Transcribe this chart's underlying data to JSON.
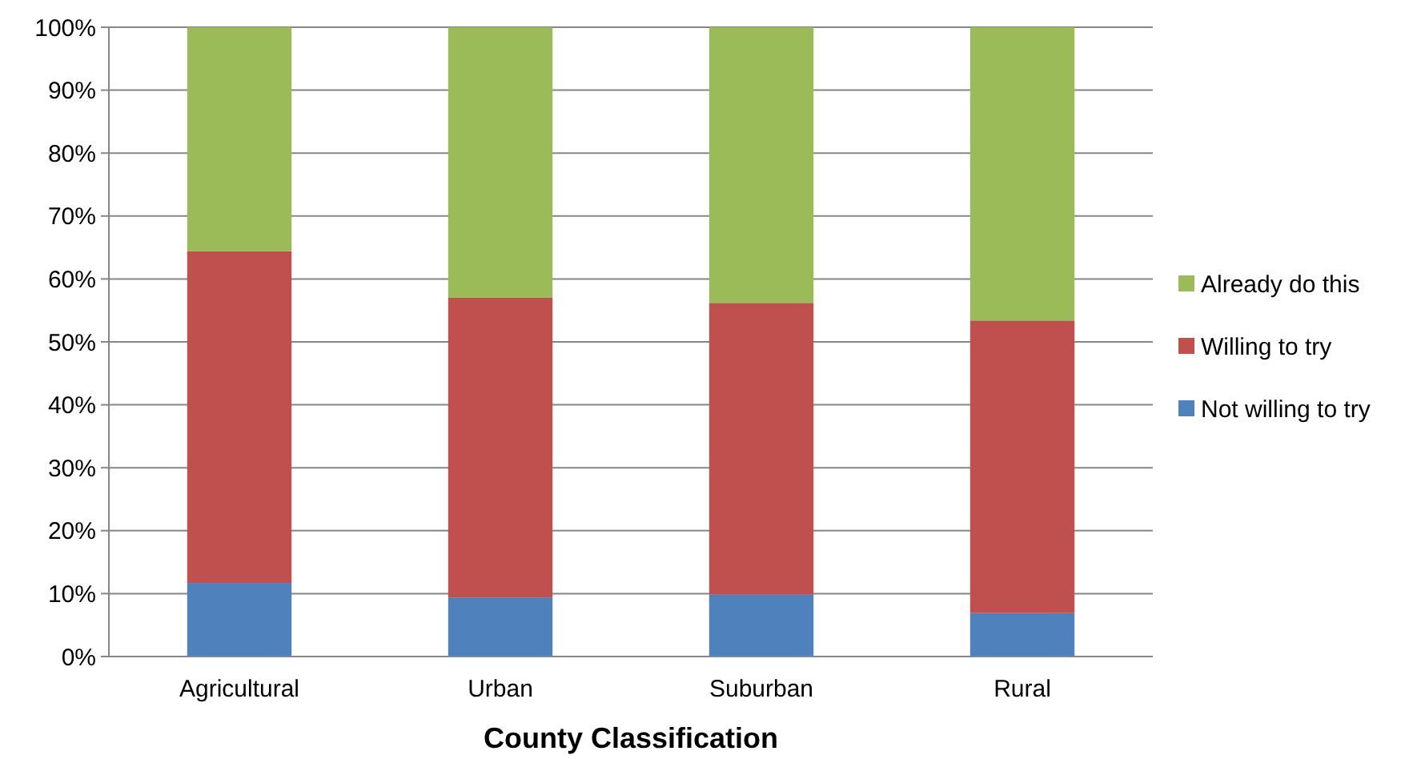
{
  "chart_data": {
    "type": "bar",
    "stacked": true,
    "xlabel": "County Classification",
    "categories": [
      "Agricultural",
      "Urban",
      "Suburban",
      "Rural"
    ],
    "series": [
      {
        "name": "Not willing to try",
        "color": "#4f81bd",
        "values": [
          11.7,
          9.4,
          9.9,
          6.9
        ]
      },
      {
        "name": "Willing to try",
        "color": "#c0504d",
        "values": [
          52.7,
          47.6,
          46.3,
          46.5
        ]
      },
      {
        "name": "Already do this",
        "color": "#9bbb59",
        "values": [
          35.6,
          43,
          43.8,
          46.6
        ]
      }
    ],
    "ylim": [
      0,
      100
    ],
    "yticks": [
      {
        "value": 0,
        "label": "0%"
      },
      {
        "value": 10,
        "label": "10%"
      },
      {
        "value": 20,
        "label": "20%"
      },
      {
        "value": 30,
        "label": "30%"
      },
      {
        "value": 40,
        "label": "40%"
      },
      {
        "value": 50,
        "label": "50%"
      },
      {
        "value": 60,
        "label": "60%"
      },
      {
        "value": 70,
        "label": "70%"
      },
      {
        "value": 80,
        "label": "80%"
      },
      {
        "value": 90,
        "label": "90%"
      },
      {
        "value": 100,
        "label": "100%"
      }
    ],
    "grid": "y",
    "legend": "right"
  }
}
